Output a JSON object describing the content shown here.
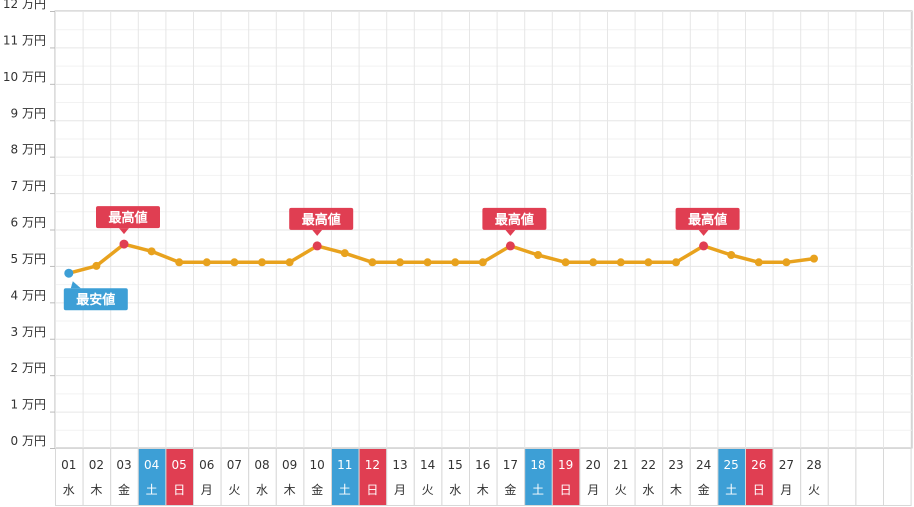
{
  "chart_data": {
    "type": "line",
    "title": "",
    "xlabel": "",
    "ylabel": "",
    "ylim": [
      0,
      12
    ],
    "y_unit_suffix": " 万円",
    "y_ticks": [
      0,
      1,
      2,
      3,
      4,
      5,
      6,
      7,
      8,
      9,
      10,
      11,
      12
    ],
    "grid": true,
    "days": [
      "01",
      "02",
      "03",
      "04",
      "05",
      "06",
      "07",
      "08",
      "09",
      "10",
      "11",
      "12",
      "13",
      "14",
      "15",
      "16",
      "17",
      "18",
      "19",
      "20",
      "21",
      "22",
      "23",
      "24",
      "25",
      "26",
      "27",
      "28"
    ],
    "weekdays": [
      "水",
      "木",
      "金",
      "土",
      "日",
      "月",
      "火",
      "水",
      "木",
      "金",
      "土",
      "日",
      "月",
      "火",
      "水",
      "木",
      "金",
      "土",
      "日",
      "月",
      "火",
      "水",
      "木",
      "金",
      "土",
      "日",
      "月",
      "火"
    ],
    "saturday_indices": [
      3,
      10,
      17,
      24
    ],
    "sunday_indices": [
      4,
      11,
      18,
      25
    ],
    "empty_slots_after": 3,
    "values": [
      4.8,
      5.0,
      5.6,
      5.4,
      5.1,
      5.1,
      5.1,
      5.1,
      5.1,
      5.55,
      5.35,
      5.1,
      5.1,
      5.1,
      5.1,
      5.1,
      5.55,
      5.3,
      5.1,
      5.1,
      5.1,
      5.1,
      5.1,
      5.55,
      5.3,
      5.1,
      5.1,
      5.2
    ],
    "annotations": [
      {
        "index": 0,
        "text": "最安値",
        "type": "min"
      },
      {
        "index": 2,
        "text": "最高値",
        "type": "max"
      },
      {
        "index": 9,
        "text": "最高値",
        "type": "max"
      },
      {
        "index": 16,
        "text": "最高値",
        "type": "max"
      },
      {
        "index": 23,
        "text": "最高値",
        "type": "max"
      }
    ],
    "colors": {
      "line": "#e8a21e",
      "point": "#e8a21e",
      "max_point": "#e03e52",
      "min_point": "#3d9fd6",
      "max_label": "#e03e52",
      "min_label": "#3d9fd6",
      "saturday_bg": "#3d9fd6",
      "sunday_bg": "#e03e52",
      "grid": "#e6e6e6",
      "axis": "#bbbbbb"
    }
  }
}
